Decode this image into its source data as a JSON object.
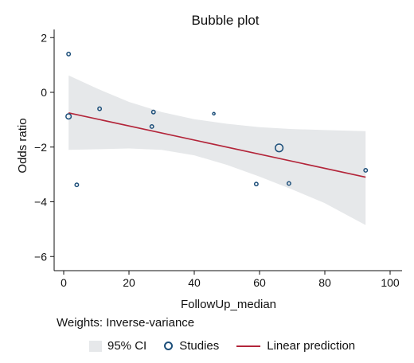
{
  "chart_data": {
    "type": "scatter",
    "title": "Bubble plot",
    "xlabel": "FollowUp_median",
    "ylabel": "Odds ratio",
    "xlim": [
      0,
      100
    ],
    "ylim": [
      -6,
      2
    ],
    "xticks": [
      0,
      20,
      40,
      60,
      80,
      100
    ],
    "yticks": [
      2,
      0,
      -2,
      -4,
      -6
    ],
    "ytick_labels": [
      "2",
      "0",
      "−2",
      "−4",
      "−6"
    ],
    "grid": false,
    "legend_position": "bottom",
    "series": [
      {
        "name": "Studies",
        "points": [
          {
            "x": 1.5,
            "y": 1.4,
            "weight": 1.0
          },
          {
            "x": 1.5,
            "y": -0.88,
            "weight": 1.5
          },
          {
            "x": 4,
            "y": -3.38,
            "weight": 1.0
          },
          {
            "x": 11,
            "y": -0.6,
            "weight": 1.0
          },
          {
            "x": 27.5,
            "y": -0.72,
            "weight": 1.0
          },
          {
            "x": 27,
            "y": -1.25,
            "weight": 1.0
          },
          {
            "x": 46,
            "y": -0.78,
            "weight": 0.7
          },
          {
            "x": 59,
            "y": -3.35,
            "weight": 1.0
          },
          {
            "x": 66,
            "y": -2.03,
            "weight": 2.2
          },
          {
            "x": 69,
            "y": -3.33,
            "weight": 1.0
          },
          {
            "x": 92.5,
            "y": -2.85,
            "weight": 1.0
          }
        ]
      },
      {
        "name": "Linear prediction",
        "x": [
          1.5,
          92.5
        ],
        "y": [
          -0.75,
          -3.1
        ]
      },
      {
        "name": "95% CI",
        "x": [
          1.5,
          10,
          20,
          30,
          40,
          50,
          60,
          70,
          80,
          92.5
        ],
        "upper": [
          0.62,
          0.15,
          -0.35,
          -0.72,
          -0.98,
          -1.15,
          -1.27,
          -1.34,
          -1.38,
          -1.42
        ],
        "lower": [
          -2.1,
          -2.08,
          -2.05,
          -2.1,
          -2.3,
          -2.65,
          -3.08,
          -3.55,
          -4.05,
          -4.85
        ]
      }
    ]
  },
  "legend": {
    "ci_label": "95% CI",
    "studies_label": "Studies",
    "line_label": "Linear prediction"
  },
  "note": "Weights: Inverse-variance",
  "colors": {
    "ci_band": "#e6e8ea",
    "marker": "#1d4f7a",
    "line": "#b3253a",
    "axis": "#111111"
  }
}
